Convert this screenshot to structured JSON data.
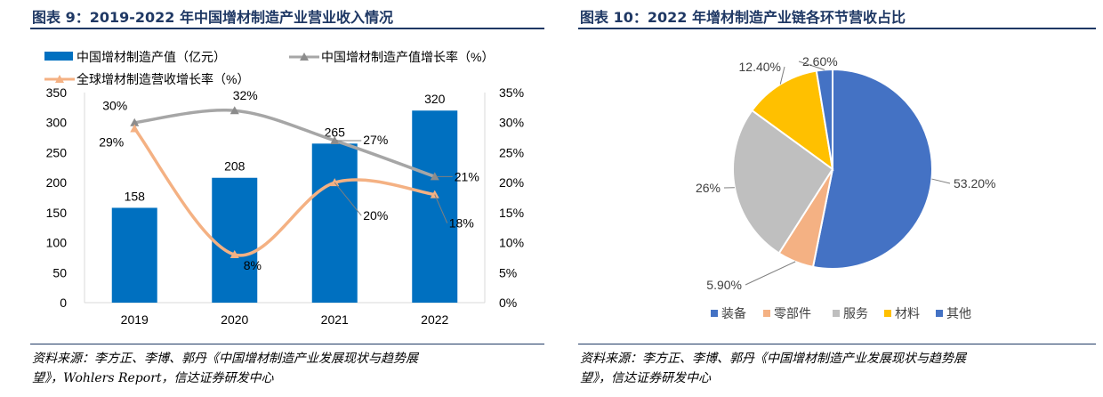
{
  "left_panel": {
    "title": "图表 9：2019-2022 年中国增材制造产业营业收入情况",
    "source_line1": "资料来源：李方正、李博、郭丹《中国增材制造产业发展现状与趋势展",
    "source_line2": "望》，Wohlers Report，信达证券研发中心"
  },
  "right_panel": {
    "title": "图表 10：2022 年增材制造产业链各环节营收占比",
    "source_line1": "资料来源：李方正、李博、郭丹《中国增材制造产业发展现状与趋势展",
    "source_line2": "望》，信达证券研发中心"
  },
  "colors": {
    "bar": "#0070c0",
    "china_growth_line": "#a6a6a6",
    "global_growth_line": "#f4b183",
    "title": "#1f3864",
    "pie": [
      "#4472c4",
      "#f4b183",
      "#bfbfbf",
      "#ffc000",
      "#4472c4"
    ]
  },
  "chart_data": [
    {
      "type": "bar",
      "categories": [
        "2019",
        "2020",
        "2021",
        "2022"
      ],
      "series": [
        {
          "name": "中国增材制造产值（亿元）",
          "values": [
            158,
            208,
            265,
            320
          ],
          "labels": [
            "158",
            "208",
            "265",
            "320"
          ],
          "axis": "left"
        },
        {
          "name": "中国增材制造产值增长率（%）",
          "values": [
            30,
            32,
            27,
            21
          ],
          "labels": [
            "30%",
            "32%",
            "27%",
            "21%"
          ],
          "axis": "right",
          "kind": "line"
        },
        {
          "name": "全球增材制造营收增长率（%）",
          "values": [
            29,
            8,
            20,
            18
          ],
          "labels": [
            "29%",
            "8%",
            "20%",
            "18%"
          ],
          "axis": "right",
          "kind": "line"
        }
      ],
      "ylim_left": [
        0,
        350
      ],
      "yticks_left": [
        "0",
        "50",
        "100",
        "150",
        "200",
        "250",
        "300",
        "350"
      ],
      "ylim_right": [
        0,
        35
      ],
      "yticks_right": [
        "0%",
        "5%",
        "10%",
        "15%",
        "20%",
        "25%",
        "30%",
        "35%"
      ],
      "legend_position": "top"
    },
    {
      "type": "pie",
      "labels": [
        "装备",
        "零部件",
        "服务",
        "材料",
        "其他"
      ],
      "values": [
        53.2,
        5.9,
        26,
        12.4,
        2.6
      ],
      "value_labels": [
        "53.20%",
        "5.90%",
        "26%",
        "12.40%",
        "2.60%"
      ],
      "legend_position": "bottom"
    }
  ]
}
